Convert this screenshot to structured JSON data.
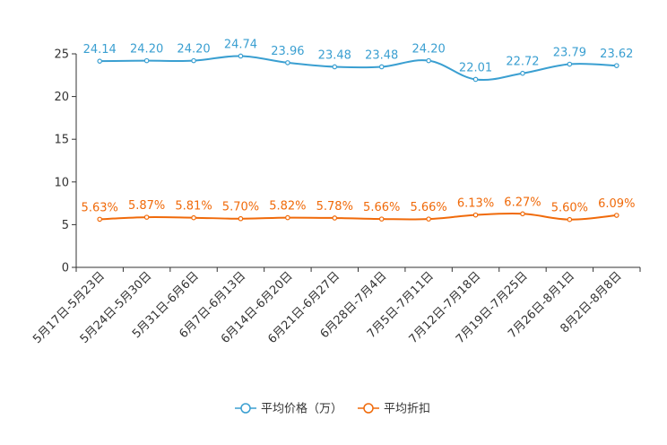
{
  "chart_data": {
    "type": "line",
    "title": "",
    "xlabel": "",
    "ylabel": "",
    "ylim": [
      0,
      25
    ],
    "yticks": [
      0,
      5,
      10,
      15,
      20,
      25
    ],
    "grid": false,
    "legend_position": "bottom-center",
    "categories": [
      "5月17日-5月23日",
      "5月24日-5月30日",
      "5月31日-6月6日",
      "6月7日-6月13日",
      "6月14日-6月20日",
      "6月21日-6月27日",
      "6月28日-7月4日",
      "7月5日-7月11日",
      "7月12日-7月18日",
      "7月19日-7月25日",
      "7月26日-8月1日",
      "8月2日-8月8日"
    ],
    "series": [
      {
        "name": "平均价格（万）",
        "color": "#3a9fd1",
        "values": [
          24.14,
          24.2,
          24.2,
          24.74,
          23.96,
          23.48,
          23.48,
          24.2,
          22.01,
          22.72,
          23.79,
          23.62
        ],
        "labels": [
          "24.14",
          "24.20",
          "24.20",
          "24.74",
          "23.96",
          "23.48",
          "23.48",
          "24.20",
          "22.01",
          "22.72",
          "23.79",
          "23.62"
        ]
      },
      {
        "name": "平均折扣",
        "color": "#f06a0a",
        "values": [
          5.63,
          5.87,
          5.81,
          5.7,
          5.82,
          5.78,
          5.66,
          5.66,
          6.13,
          6.27,
          5.6,
          6.09
        ],
        "labels": [
          "5.63%",
          "5.87%",
          "5.81%",
          "5.70%",
          "5.82%",
          "5.78%",
          "5.66%",
          "5.66%",
          "6.13%",
          "6.27%",
          "5.60%",
          "6.09%"
        ]
      }
    ]
  }
}
